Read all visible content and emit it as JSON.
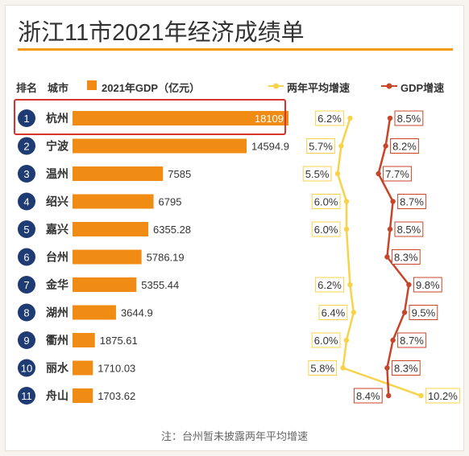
{
  "title": "浙江11市2021年经济成绩单",
  "headers": {
    "rank": "排名",
    "city": "城市",
    "gdp": "2021年GDP（亿元）",
    "avg_growth": "两年平均增速",
    "gdp_growth": "GDP增速"
  },
  "footnote": "注：台州暂未披露两年平均增速",
  "colors": {
    "bar": "#f08c14",
    "rank_circle": "#1f3b73",
    "avg_line": "#f7d34a",
    "gdp_line": "#c8452a",
    "highlight": "#d9342b",
    "title_bar": "#f29a16"
  },
  "chart_data": {
    "type": "bar",
    "title": "浙江11市2021年经济成绩单",
    "categories": [
      "杭州",
      "宁波",
      "温州",
      "绍兴",
      "嘉兴",
      "台州",
      "金华",
      "湖州",
      "衢州",
      "丽水",
      "舟山"
    ],
    "ranks": [
      "1",
      "2",
      "3",
      "4",
      "5",
      "6",
      "7",
      "8",
      "9",
      "10",
      "11"
    ],
    "series": [
      {
        "name": "2021年GDP（亿元）",
        "values": [
          18109,
          14594.9,
          7585,
          6795,
          6355.28,
          5786.19,
          5355.44,
          3644.9,
          1875.61,
          1710.03,
          1703.62
        ],
        "labels": [
          "18109",
          "14594.9",
          "7585",
          "6795",
          "6355.28",
          "5786.19",
          "5355.44",
          "3644.9",
          "1875.61",
          "1710.03",
          "1703.62"
        ]
      },
      {
        "name": "两年平均增速",
        "values": [
          6.2,
          5.7,
          5.5,
          6.0,
          6.0,
          null,
          6.2,
          6.4,
          6.0,
          5.8,
          10.2
        ],
        "labels": [
          "6.2%",
          "5.7%",
          "5.5%",
          "6.0%",
          "6.0%",
          null,
          "6.2%",
          "6.4%",
          "6.0%",
          "5.8%",
          "10.2%"
        ]
      },
      {
        "name": "GDP增速",
        "values": [
          8.5,
          8.2,
          7.7,
          8.7,
          8.5,
          8.3,
          9.8,
          9.5,
          8.7,
          8.3,
          8.4
        ],
        "labels": [
          "8.5%",
          "8.2%",
          "7.7%",
          "8.7%",
          "8.5%",
          "8.3%",
          "9.8%",
          "9.5%",
          "8.7%",
          "8.3%",
          "8.4%"
        ]
      }
    ],
    "highlighted_category": "杭州",
    "legend_position": "top",
    "grid": false
  }
}
